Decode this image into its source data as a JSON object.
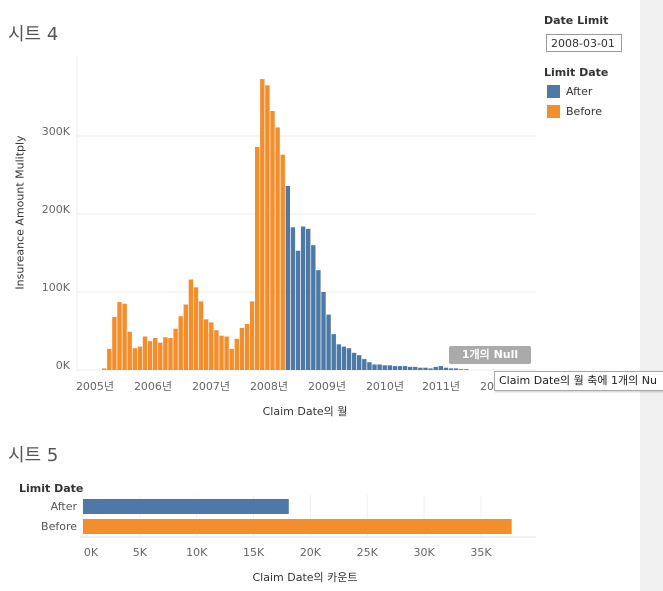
{
  "sheet4": {
    "title": "시트 4",
    "null_badge": "1개의 Null",
    "tooltip": "Claim Date의 월 축에 1개의 Nu"
  },
  "sheet5": {
    "title": "시트 5"
  },
  "filter": {
    "label": "Date Limit",
    "value": "2008-03-01"
  },
  "legend": {
    "title": "Limit Date",
    "items": [
      {
        "label": "After",
        "color": "#4e79a7"
      },
      {
        "label": "Before",
        "color": "#f28e2b"
      }
    ]
  },
  "chart_data": [
    {
      "type": "bar",
      "title": "시트 4",
      "xlabel": "Claim Date의 월",
      "ylabel": "Insureance Amount Mulitply",
      "ylim": [
        0,
        400000
      ],
      "yticks": [
        {
          "value": 0,
          "label": "0K"
        },
        {
          "value": 100000,
          "label": "100K"
        },
        {
          "value": 200000,
          "label": "200K"
        },
        {
          "value": 300000,
          "label": "300K"
        }
      ],
      "x_start": "2005-02",
      "xtick_labels": [
        "2005년",
        "2006년",
        "2007년",
        "2008년",
        "2009년",
        "2010년",
        "2011년",
        "20"
      ],
      "split_after_index": 36,
      "series": [
        {
          "name": "Before",
          "color": "#f28e2b",
          "values": [
            2000,
            27000,
            68000,
            87000,
            85000,
            49000,
            28000,
            30000,
            43000,
            37000,
            41000,
            35000,
            42000,
            41000,
            53000,
            69000,
            84000,
            116000,
            106000,
            88000,
            65000,
            61000,
            51000,
            44000,
            43000,
            27000,
            40000,
            54000,
            59000,
            88000,
            286000,
            373000,
            365000,
            332000,
            311000,
            276000
          ]
        },
        {
          "name": "After",
          "color": "#4e79a7",
          "values": [
            236000,
            183000,
            153000,
            184000,
            181000,
            160000,
            128000,
            100000,
            71000,
            46000,
            33000,
            30000,
            28000,
            22000,
            19000,
            14000,
            10000,
            7000,
            7000,
            6000,
            6000,
            5000,
            5000,
            5000,
            4000,
            4000,
            3000,
            3000,
            2000,
            4000,
            5000,
            3000,
            2000,
            2000,
            1000,
            1000
          ]
        }
      ]
    },
    {
      "type": "bar",
      "orientation": "horizontal",
      "title": "시트 5",
      "categories_title": "Limit Date",
      "categories": [
        "After",
        "Before"
      ],
      "values": [
        18100,
        37700
      ],
      "colors": [
        "#4e79a7",
        "#f28e2b"
      ],
      "xlabel": "Claim Date의 카운트",
      "xlim": [
        0,
        39000
      ],
      "xticks": [
        {
          "value": 0,
          "label": "0K"
        },
        {
          "value": 5000,
          "label": "5K"
        },
        {
          "value": 10000,
          "label": "10K"
        },
        {
          "value": 15000,
          "label": "15K"
        },
        {
          "value": 20000,
          "label": "20K"
        },
        {
          "value": 25000,
          "label": "25K"
        },
        {
          "value": 30000,
          "label": "30K"
        },
        {
          "value": 35000,
          "label": "35K"
        }
      ]
    }
  ]
}
